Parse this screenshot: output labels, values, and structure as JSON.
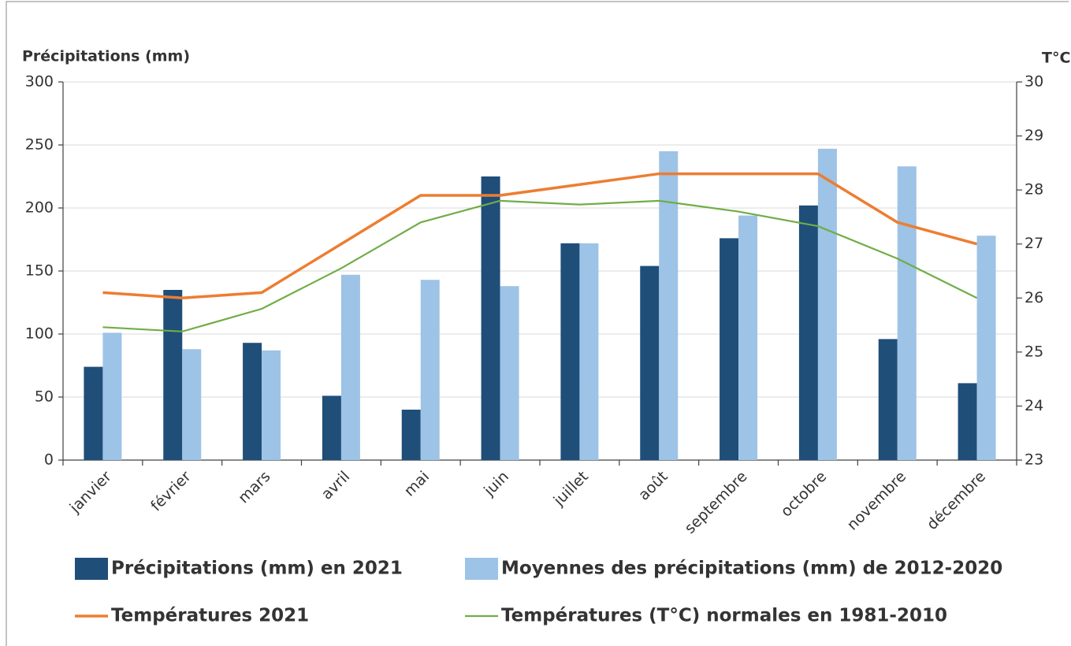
{
  "chart_data": {
    "type": "bar_line",
    "y_label": "Précipitations (mm)",
    "y2_label": "T°C",
    "categories": [
      "janvier",
      "février",
      "mars",
      "avril",
      "mai",
      "juin",
      "juillet",
      "août",
      "septembre",
      "octobre",
      "novembre",
      "décembre"
    ],
    "series": [
      {
        "name": "Précipitations (mm) en 2021",
        "type": "bar",
        "color": "#1f4e79",
        "values": [
          74,
          135,
          93,
          51,
          40,
          225,
          172,
          154,
          176,
          202,
          96,
          61
        ]
      },
      {
        "name": "Moyennes des précipitations (mm) de 2012-2020",
        "type": "bar",
        "color": "#9dc3e6",
        "values": [
          101,
          88,
          87,
          147,
          143,
          138,
          172,
          245,
          194,
          247,
          233,
          178
        ]
      },
      {
        "name": "Températures 2021",
        "type": "line",
        "axis": "y2",
        "color": "#ed7d31",
        "values": [
          26.1,
          26.0,
          26.1,
          27.0,
          27.9,
          27.9,
          28.1,
          28.3,
          28.3,
          28.3,
          27.4,
          27.0
        ]
      },
      {
        "name": "Températures (T°C) normales en 1981-2010",
        "type": "line",
        "axis": "y2",
        "color": "#70ad47",
        "values": [
          25.46,
          25.38,
          25.8,
          26.55,
          27.4,
          27.8,
          27.73,
          27.8,
          27.6,
          27.33,
          26.73,
          26.0
        ]
      }
    ],
    "ylim": [
      0,
      300
    ],
    "yticks": [
      0,
      50,
      100,
      150,
      200,
      250,
      300
    ],
    "y2lim": [
      23,
      30
    ],
    "y2ticks": [
      23,
      24,
      25,
      26,
      27,
      28,
      29,
      30
    ],
    "grid": true,
    "legend": "bottom"
  }
}
